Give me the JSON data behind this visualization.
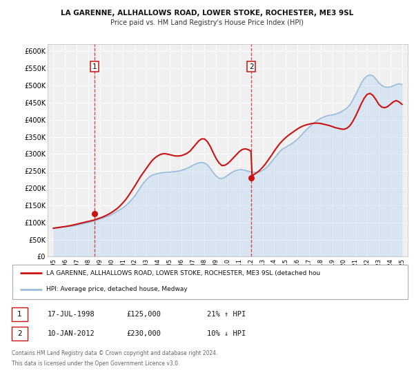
{
  "title1": "LA GARENNE, ALLHALLOWS ROAD, LOWER STOKE, ROCHESTER, ME3 9SL",
  "title2": "Price paid vs. HM Land Registry's House Price Index (HPI)",
  "xlim": [
    1994.5,
    2025.5
  ],
  "ylim": [
    0,
    620000
  ],
  "yticks": [
    0,
    50000,
    100000,
    150000,
    200000,
    250000,
    300000,
    350000,
    400000,
    450000,
    500000,
    550000,
    600000
  ],
  "ytick_labels": [
    "£0",
    "£50K",
    "£100K",
    "£150K",
    "£200K",
    "£250K",
    "£300K",
    "£350K",
    "£400K",
    "£450K",
    "£500K",
    "£550K",
    "£600K"
  ],
  "xticks": [
    1995,
    1996,
    1997,
    1998,
    1999,
    2000,
    2001,
    2002,
    2003,
    2004,
    2005,
    2006,
    2007,
    2008,
    2009,
    2010,
    2011,
    2012,
    2013,
    2014,
    2015,
    2016,
    2017,
    2018,
    2019,
    2020,
    2021,
    2022,
    2023,
    2024,
    2025
  ],
  "sale1_x": 1998.54,
  "sale1_y": 125000,
  "sale1_label": "1",
  "sale2_x": 2012.04,
  "sale2_y": 230000,
  "sale2_label": "2",
  "vline1_x": 1998.54,
  "vline2_x": 2012.04,
  "legend_line1": "LA GARENNE, ALLHALLOWS ROAD, LOWER STOKE, ROCHESTER, ME3 9SL (detached hou",
  "legend_line2": "HPI: Average price, detached house, Medway",
  "table_row1": [
    "1",
    "17-JUL-1998",
    "£125,000",
    "21% ↑ HPI"
  ],
  "table_row2": [
    "2",
    "10-JAN-2012",
    "£230,000",
    "10% ↓ HPI"
  ],
  "footer1": "Contains HM Land Registry data © Crown copyright and database right 2024.",
  "footer2": "This data is licensed under the Open Government Licence v3.0.",
  "bg_color": "#f0f0f0",
  "grid_color": "#ffffff",
  "hpi_color": "#99bbdd",
  "hpi_fill_color": "#c8dff0",
  "price_color": "#cc1111",
  "hpi_line": [
    [
      1995.0,
      83000
    ],
    [
      1995.25,
      84000
    ],
    [
      1995.5,
      85000
    ],
    [
      1995.75,
      86000
    ],
    [
      1996.0,
      87000
    ],
    [
      1996.25,
      88000
    ],
    [
      1996.5,
      89000
    ],
    [
      1996.75,
      90000
    ],
    [
      1997.0,
      92000
    ],
    [
      1997.25,
      94000
    ],
    [
      1997.5,
      96000
    ],
    [
      1997.75,
      98000
    ],
    [
      1998.0,
      100000
    ],
    [
      1998.25,
      102000
    ],
    [
      1998.5,
      104000
    ],
    [
      1998.75,
      107000
    ],
    [
      1999.0,
      110000
    ],
    [
      1999.25,
      113000
    ],
    [
      1999.5,
      116000
    ],
    [
      1999.75,
      119000
    ],
    [
      2000.0,
      123000
    ],
    [
      2000.25,
      128000
    ],
    [
      2000.5,
      133000
    ],
    [
      2000.75,
      138000
    ],
    [
      2001.0,
      143000
    ],
    [
      2001.25,
      150000
    ],
    [
      2001.5,
      158000
    ],
    [
      2001.75,
      167000
    ],
    [
      2002.0,
      177000
    ],
    [
      2002.25,
      190000
    ],
    [
      2002.5,
      203000
    ],
    [
      2002.75,
      215000
    ],
    [
      2003.0,
      225000
    ],
    [
      2003.25,
      233000
    ],
    [
      2003.5,
      238000
    ],
    [
      2003.75,
      241000
    ],
    [
      2004.0,
      243000
    ],
    [
      2004.25,
      245000
    ],
    [
      2004.5,
      246000
    ],
    [
      2004.75,
      247000
    ],
    [
      2005.0,
      247000
    ],
    [
      2005.25,
      248000
    ],
    [
      2005.5,
      249000
    ],
    [
      2005.75,
      250000
    ],
    [
      2006.0,
      252000
    ],
    [
      2006.25,
      255000
    ],
    [
      2006.5,
      258000
    ],
    [
      2006.75,
      262000
    ],
    [
      2007.0,
      267000
    ],
    [
      2007.25,
      271000
    ],
    [
      2007.5,
      274000
    ],
    [
      2007.75,
      275000
    ],
    [
      2008.0,
      274000
    ],
    [
      2008.25,
      268000
    ],
    [
      2008.5,
      258000
    ],
    [
      2008.75,
      246000
    ],
    [
      2009.0,
      236000
    ],
    [
      2009.25,
      229000
    ],
    [
      2009.5,
      228000
    ],
    [
      2009.75,
      232000
    ],
    [
      2010.0,
      238000
    ],
    [
      2010.25,
      244000
    ],
    [
      2010.5,
      249000
    ],
    [
      2010.75,
      252000
    ],
    [
      2011.0,
      254000
    ],
    [
      2011.25,
      254000
    ],
    [
      2011.5,
      252000
    ],
    [
      2011.75,
      250000
    ],
    [
      2012.0,
      248000
    ],
    [
      2012.25,
      247000
    ],
    [
      2012.5,
      247000
    ],
    [
      2012.75,
      248000
    ],
    [
      2013.0,
      252000
    ],
    [
      2013.25,
      258000
    ],
    [
      2013.5,
      266000
    ],
    [
      2013.75,
      276000
    ],
    [
      2014.0,
      287000
    ],
    [
      2014.25,
      298000
    ],
    [
      2014.5,
      308000
    ],
    [
      2014.75,
      315000
    ],
    [
      2015.0,
      320000
    ],
    [
      2015.25,
      325000
    ],
    [
      2015.5,
      330000
    ],
    [
      2015.75,
      336000
    ],
    [
      2016.0,
      343000
    ],
    [
      2016.25,
      352000
    ],
    [
      2016.5,
      361000
    ],
    [
      2016.75,
      370000
    ],
    [
      2017.0,
      378000
    ],
    [
      2017.25,
      386000
    ],
    [
      2017.5,
      393000
    ],
    [
      2017.75,
      399000
    ],
    [
      2018.0,
      404000
    ],
    [
      2018.25,
      408000
    ],
    [
      2018.5,
      411000
    ],
    [
      2018.75,
      413000
    ],
    [
      2019.0,
      414000
    ],
    [
      2019.25,
      416000
    ],
    [
      2019.5,
      419000
    ],
    [
      2019.75,
      423000
    ],
    [
      2020.0,
      428000
    ],
    [
      2020.25,
      434000
    ],
    [
      2020.5,
      443000
    ],
    [
      2020.75,
      457000
    ],
    [
      2021.0,
      473000
    ],
    [
      2021.25,
      490000
    ],
    [
      2021.5,
      507000
    ],
    [
      2021.75,
      520000
    ],
    [
      2022.0,
      528000
    ],
    [
      2022.25,
      531000
    ],
    [
      2022.5,
      528000
    ],
    [
      2022.75,
      519000
    ],
    [
      2023.0,
      508000
    ],
    [
      2023.25,
      500000
    ],
    [
      2023.5,
      496000
    ],
    [
      2023.75,
      495000
    ],
    [
      2024.0,
      496000
    ],
    [
      2024.25,
      499000
    ],
    [
      2024.5,
      503000
    ],
    [
      2024.75,
      505000
    ],
    [
      2025.0,
      503000
    ]
  ],
  "price_line": [
    [
      1995.0,
      83000
    ],
    [
      1995.25,
      84500
    ],
    [
      1995.5,
      85500
    ],
    [
      1995.75,
      87000
    ],
    [
      1996.0,
      88000
    ],
    [
      1996.25,
      89500
    ],
    [
      1996.5,
      91000
    ],
    [
      1996.75,
      93000
    ],
    [
      1997.0,
      95000
    ],
    [
      1997.25,
      97000
    ],
    [
      1997.5,
      99000
    ],
    [
      1997.75,
      101000
    ],
    [
      1998.0,
      103000
    ],
    [
      1998.25,
      105000
    ],
    [
      1998.5,
      107000
    ],
    [
      1998.75,
      110000
    ],
    [
      1999.0,
      113000
    ],
    [
      1999.25,
      116000
    ],
    [
      1999.5,
      120000
    ],
    [
      1999.75,
      124000
    ],
    [
      2000.0,
      129000
    ],
    [
      2000.25,
      135000
    ],
    [
      2000.5,
      141000
    ],
    [
      2000.75,
      149000
    ],
    [
      2001.0,
      158000
    ],
    [
      2001.25,
      168000
    ],
    [
      2001.5,
      180000
    ],
    [
      2001.75,
      193000
    ],
    [
      2002.0,
      206000
    ],
    [
      2002.25,
      220000
    ],
    [
      2002.5,
      234000
    ],
    [
      2002.75,
      246000
    ],
    [
      2003.0,
      258000
    ],
    [
      2003.25,
      270000
    ],
    [
      2003.5,
      281000
    ],
    [
      2003.75,
      289000
    ],
    [
      2004.0,
      295000
    ],
    [
      2004.25,
      299000
    ],
    [
      2004.5,
      301000
    ],
    [
      2004.75,
      300000
    ],
    [
      2005.0,
      298000
    ],
    [
      2005.25,
      296000
    ],
    [
      2005.5,
      294000
    ],
    [
      2005.75,
      294000
    ],
    [
      2006.0,
      295000
    ],
    [
      2006.25,
      298000
    ],
    [
      2006.5,
      302000
    ],
    [
      2006.75,
      308000
    ],
    [
      2007.0,
      318000
    ],
    [
      2007.25,
      328000
    ],
    [
      2007.5,
      338000
    ],
    [
      2007.75,
      344000
    ],
    [
      2008.0,
      344000
    ],
    [
      2008.25,
      336000
    ],
    [
      2008.5,
      322000
    ],
    [
      2008.75,
      304000
    ],
    [
      2009.0,
      287000
    ],
    [
      2009.25,
      274000
    ],
    [
      2009.5,
      266000
    ],
    [
      2009.75,
      267000
    ],
    [
      2010.0,
      272000
    ],
    [
      2010.25,
      280000
    ],
    [
      2010.5,
      289000
    ],
    [
      2010.75,
      298000
    ],
    [
      2011.0,
      307000
    ],
    [
      2011.25,
      313000
    ],
    [
      2011.5,
      315000
    ],
    [
      2011.75,
      313000
    ],
    [
      2012.0,
      308000
    ],
    [
      2012.1,
      235000
    ],
    [
      2012.25,
      240000
    ],
    [
      2012.5,
      245000
    ],
    [
      2012.75,
      252000
    ],
    [
      2013.0,
      261000
    ],
    [
      2013.25,
      271000
    ],
    [
      2013.5,
      283000
    ],
    [
      2013.75,
      295000
    ],
    [
      2014.0,
      308000
    ],
    [
      2014.25,
      320000
    ],
    [
      2014.5,
      331000
    ],
    [
      2014.75,
      340000
    ],
    [
      2015.0,
      348000
    ],
    [
      2015.25,
      355000
    ],
    [
      2015.5,
      361000
    ],
    [
      2015.75,
      367000
    ],
    [
      2016.0,
      373000
    ],
    [
      2016.25,
      378000
    ],
    [
      2016.5,
      382000
    ],
    [
      2016.75,
      385000
    ],
    [
      2017.0,
      387000
    ],
    [
      2017.25,
      389000
    ],
    [
      2017.5,
      390000
    ],
    [
      2017.75,
      390000
    ],
    [
      2018.0,
      389000
    ],
    [
      2018.25,
      387000
    ],
    [
      2018.5,
      385000
    ],
    [
      2018.75,
      383000
    ],
    [
      2019.0,
      380000
    ],
    [
      2019.25,
      377000
    ],
    [
      2019.5,
      375000
    ],
    [
      2019.75,
      373000
    ],
    [
      2020.0,
      372000
    ],
    [
      2020.25,
      375000
    ],
    [
      2020.5,
      382000
    ],
    [
      2020.75,
      394000
    ],
    [
      2021.0,
      410000
    ],
    [
      2021.25,
      428000
    ],
    [
      2021.5,
      447000
    ],
    [
      2021.75,
      463000
    ],
    [
      2022.0,
      474000
    ],
    [
      2022.25,
      477000
    ],
    [
      2022.5,
      471000
    ],
    [
      2022.75,
      459000
    ],
    [
      2023.0,
      445000
    ],
    [
      2023.25,
      437000
    ],
    [
      2023.5,
      435000
    ],
    [
      2023.75,
      438000
    ],
    [
      2024.0,
      445000
    ],
    [
      2024.25,
      452000
    ],
    [
      2024.5,
      456000
    ],
    [
      2024.75,
      452000
    ],
    [
      2025.0,
      445000
    ]
  ]
}
